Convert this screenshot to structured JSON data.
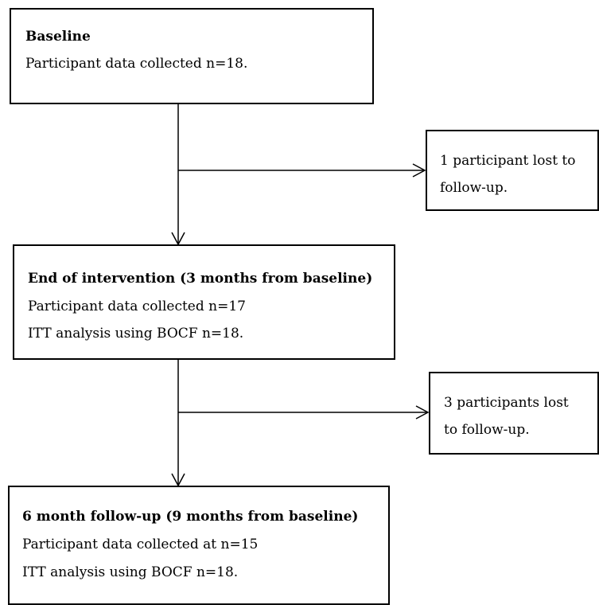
{
  "boxes": {
    "baseline": {
      "title": "Baseline",
      "lines": [
        "Participant data collected n=18."
      ]
    },
    "loss1": {
      "lines": [
        "1 participant lost to",
        "follow-up."
      ]
    },
    "end_intervention": {
      "title": "End of intervention (3 months from baseline)",
      "lines": [
        "Participant data collected n=17",
        "ITT analysis using BOCF n=18."
      ]
    },
    "loss2": {
      "lines": [
        "3 participants lost",
        "to follow-up."
      ]
    },
    "followup": {
      "title": "6 month follow-up (9 months from baseline)",
      "lines": [
        "Participant data collected at n=15",
        "ITT analysis using BOCF n=18."
      ]
    }
  }
}
